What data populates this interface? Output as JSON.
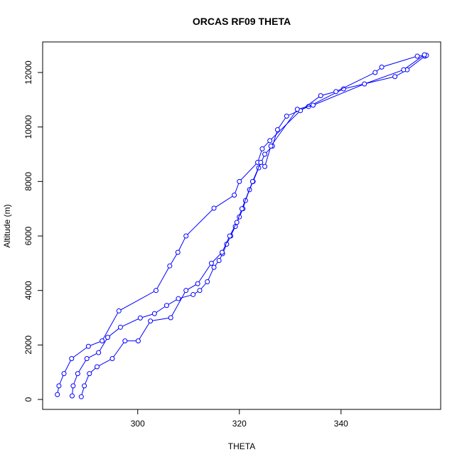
{
  "chart_data": {
    "type": "line",
    "title": "ORCAS RF09 THETA",
    "xlabel": "THETA",
    "ylabel": "Altitude (m)",
    "xlim": [
      281.3,
      359.6
    ],
    "ylim": [
      -365,
      13122
    ],
    "xticks": [
      300,
      320,
      340
    ],
    "yticks": [
      0,
      2000,
      4000,
      6000,
      8000,
      10000,
      12000
    ],
    "markers": true,
    "grid": false,
    "series": [
      {
        "color": "#0000ff",
        "x": [
          287.1,
          287.3,
          288.2,
          290,
          292.3,
          294.1,
          296.6,
          300.5,
          303.3,
          305.7,
          308,
          310.9,
          312.2,
          313.7,
          315,
          316,
          316.7,
          317.5,
          318.3,
          319.2,
          320,
          320.7,
          321.2,
          322,
          322.7,
          323.8,
          325,
          326.5,
          327.5,
          329.3,
          333.6,
          340.5,
          350.6,
          353,
          356.5
        ],
        "values": [
          130,
          500,
          950,
          1500,
          1720,
          2280,
          2650,
          2990,
          3150,
          3450,
          3700,
          3850,
          4000,
          4320,
          4850,
          5100,
          5350,
          5700,
          6000,
          6350,
          6700,
          7000,
          7300,
          7700,
          8000,
          8500,
          9000,
          9300,
          9900,
          10400,
          10750,
          11400,
          11850,
          12100,
          12600
        ]
      },
      {
        "color": "#0000ff",
        "x": [
          284.2,
          284.5,
          285.5,
          287,
          290.3,
          293,
          296.3,
          303.6,
          306.3,
          307.9,
          309.5,
          315,
          319,
          320,
          323.6,
          324.5,
          326,
          332,
          336,
          339,
          346.7,
          348,
          355,
          356.8
        ],
        "values": [
          180,
          500,
          950,
          1500,
          1950,
          2150,
          3250,
          4000,
          4900,
          5400,
          6000,
          7020,
          7500,
          8000,
          8700,
          9200,
          9500,
          10600,
          11150,
          11300,
          12000,
          12200,
          12600,
          12630
        ]
      },
      {
        "color": "#0000ff",
        "x": [
          288.9,
          289.5,
          290.5,
          292,
          295,
          297.5,
          300.1,
          302.5,
          306.5,
          309.5,
          311.8,
          314.5,
          316.6,
          318.1,
          319.5,
          320.5,
          322.6,
          324.2,
          325,
          326.2,
          331.4,
          334.5,
          344.6,
          352.3,
          356.4
        ],
        "values": [
          100,
          500,
          950,
          1200,
          1500,
          2150,
          2150,
          2880,
          3000,
          4000,
          4250,
          5000,
          5400,
          6000,
          6500,
          7000,
          8000,
          8700,
          8550,
          9300,
          10650,
          10800,
          11580,
          12100,
          12650
        ]
      }
    ]
  }
}
